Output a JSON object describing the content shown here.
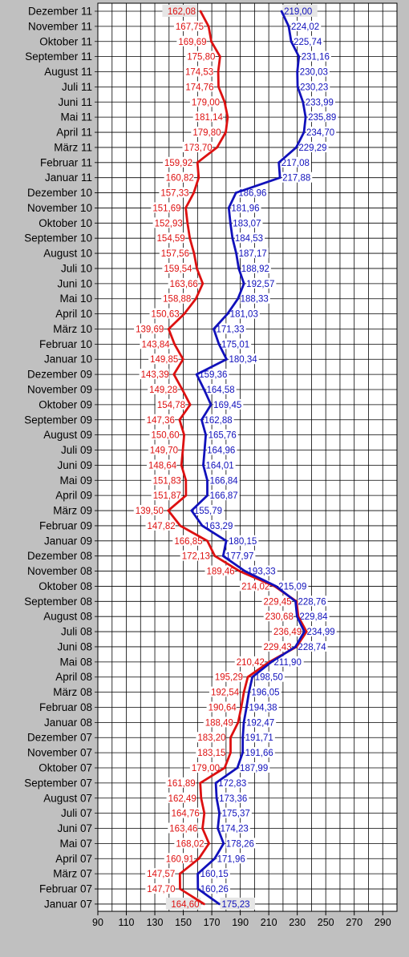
{
  "chart_data": {
    "type": "line",
    "categories": [
      "Dezember 11",
      "November 11",
      "Oktober 11",
      "September 11",
      "August 11",
      "Juli 11",
      "Juni 11",
      "Mai 11",
      "April 11",
      "März 11",
      "Februar 11",
      "Januar 11",
      "Dezember 10",
      "November 10",
      "Oktober 10",
      "September 10",
      "August 10",
      "Juli 10",
      "Juni 10",
      "Mai 10",
      "April 10",
      "März 10",
      "Februar 10",
      "Januar 10",
      "Dezember 09",
      "November 09",
      "Oktober 09",
      "September 09",
      "August 09",
      "Juli 09",
      "Juni 09",
      "Mai 09",
      "April 09",
      "März 09",
      "Februar 09",
      "Januar 09",
      "Dezember 08",
      "November 08",
      "Oktober 08",
      "September 08",
      "August 08",
      "Juli 08",
      "Juni 08",
      "Mai 08",
      "April 08",
      "März 08",
      "Februar 08",
      "Januar 08",
      "Dezember 07",
      "November 07",
      "Oktober 07",
      "September 07",
      "August 07",
      "Juli 07",
      "Juni 07",
      "Mai 07",
      "April 07",
      "März 07",
      "Februar 07",
      "Januar 07"
    ],
    "series": [
      {
        "color": "#dd1111",
        "label_side": "left",
        "values": [
          162.08,
          167.75,
          169.69,
          175.8,
          174.53,
          174.76,
          179.0,
          181.14,
          179.8,
          173.7,
          159.92,
          160.82,
          157.33,
          151.69,
          152.93,
          154.59,
          157.56,
          159.54,
          163.66,
          158.88,
          150.63,
          139.69,
          143.84,
          149.85,
          143.39,
          149.28,
          154.78,
          147.36,
          150.6,
          149.7,
          148.64,
          151.83,
          151.87,
          139.5,
          147.82,
          166.85,
          172.13,
          189.46,
          214.02,
          229.45,
          230.68,
          236.49,
          229.43,
          210.42,
          195.29,
          192.54,
          190.64,
          188.49,
          183.2,
          183.15,
          179.0,
          161.89,
          162.49,
          164.76,
          163.46,
          168.02,
          160.91,
          147.57,
          147.7,
          164.6
        ],
        "labels": [
          "162,08",
          "167,75",
          "169,69",
          "175,80",
          "174,53",
          "174,76",
          "179,00",
          "181,14",
          "179,80",
          "173,70",
          "159,92",
          "160,82",
          "157,33",
          "151,69",
          "152,93",
          "154,59",
          "157,56",
          "159,54",
          "163,66",
          "158,88",
          "150,63",
          "139,69",
          "143,84",
          "149,85",
          "143,39",
          "149,28",
          "154,78",
          "147,36",
          "150,60",
          "149,70",
          "148,64",
          "151,83",
          "151,87",
          "139,50",
          "147,82",
          "166,85",
          "172,13",
          "189,46",
          "214,02",
          "229,45",
          "230,68",
          "236,49",
          "229,43",
          "210,42",
          "195,29",
          "192,54",
          "190,64",
          "188,49",
          "183,20",
          "183,15",
          "179,00",
          "161,89",
          "162,49",
          "164,76",
          "163,46",
          "168,02",
          "160,91",
          "147,57",
          "147,70",
          "164,60"
        ]
      },
      {
        "color": "#1111bb",
        "label_side": "right",
        "values": [
          219.0,
          224.02,
          225.74,
          231.16,
          230.03,
          230.23,
          233.99,
          235.89,
          234.7,
          229.29,
          217.08,
          217.88,
          186.96,
          181.96,
          183.07,
          184.53,
          187.17,
          188.92,
          192.57,
          188.33,
          181.03,
          171.33,
          175.01,
          180.34,
          159.36,
          164.58,
          169.45,
          162.88,
          165.76,
          164.96,
          164.01,
          166.84,
          166.87,
          155.79,
          163.29,
          180.15,
          177.97,
          193.33,
          215.09,
          228.76,
          229.84,
          234.99,
          228.74,
          211.9,
          198.5,
          196.05,
          194.38,
          192.47,
          191.71,
          191.66,
          187.99,
          172.83,
          173.36,
          175.37,
          174.23,
          178.26,
          171.96,
          160.15,
          160.26,
          175.23
        ],
        "labels": [
          "219,00",
          "224,02",
          "225,74",
          "231,16",
          "230,03",
          "230,23",
          "233,99",
          "235,89",
          "234,70",
          "229,29",
          "217,08",
          "217,88",
          "186,96",
          "181,96",
          "183,07",
          "184,53",
          "187,17",
          "188,92",
          "192,57",
          "188,33",
          "181,03",
          "171,33",
          "175,01",
          "180,34",
          "159,36",
          "164,58",
          "169,45",
          "162,88",
          "165,76",
          "164,96",
          "164,01",
          "166,84",
          "166,87",
          "155,79",
          "163,29",
          "180,15",
          "177,97",
          "193,33",
          "215,09",
          "228,76",
          "229,84",
          "234,99",
          "228,74",
          "211,90",
          "198,50",
          "196,05",
          "194,38",
          "192,47",
          "191,71",
          "191,66",
          "187,99",
          "172,83",
          "173,36",
          "175,37",
          "174,23",
          "178,26",
          "171,96",
          "160,15",
          "160,26",
          "175,23"
        ]
      }
    ],
    "x_ticks": [
      "90",
      "110",
      "130",
      "150",
      "170",
      "190",
      "210",
      "230",
      "250",
      "270",
      "290"
    ],
    "xlim": [
      90,
      300
    ],
    "highlighted_labels": [
      "162,08",
      "219,00",
      "164,60",
      "175,23"
    ],
    "grid": true,
    "title": "",
    "xlabel": "",
    "ylabel": ""
  }
}
